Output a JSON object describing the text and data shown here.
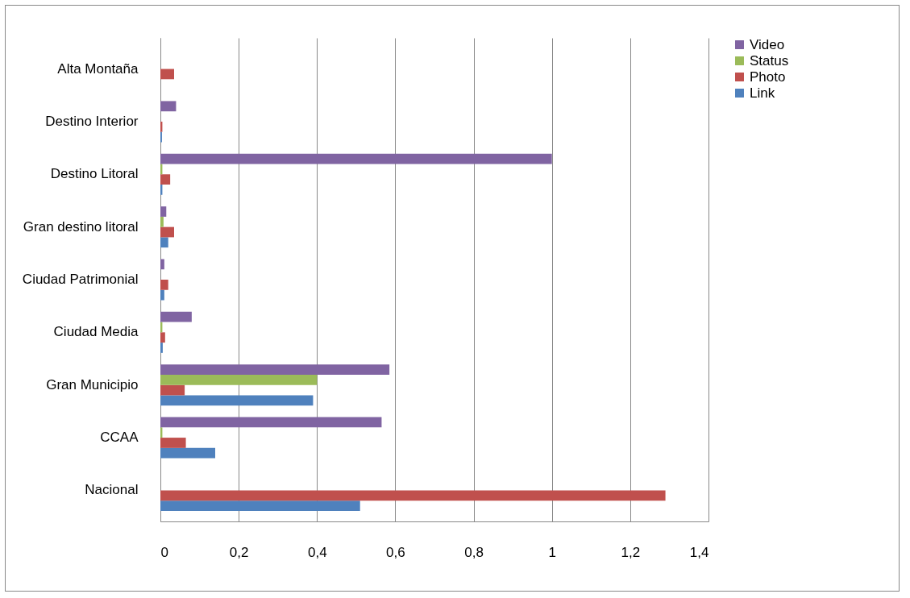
{
  "chart_data": {
    "type": "bar",
    "orientation": "horizontal",
    "categories": [
      "Alta Montaña",
      "Destino Interior",
      "Destino Litoral",
      "Gran destino litoral",
      "Ciudad Patrimonial",
      "Ciudad Media",
      "Gran Municipio",
      "CCAA",
      "Nacional"
    ],
    "series": [
      {
        "name": "Link",
        "color": "#4f81bd",
        "values": [
          null,
          0.004,
          0.005,
          0.02,
          0.01,
          0.006,
          0.39,
          0.14,
          0.51
        ]
      },
      {
        "name": "Photo",
        "color": "#c0504d",
        "values": [
          0.035,
          0.005,
          0.025,
          0.035,
          0.02,
          0.012,
          0.062,
          0.065,
          1.29
        ]
      },
      {
        "name": "Status",
        "color": "#9bbb59",
        "values": [
          null,
          null,
          0.005,
          0.008,
          null,
          0.005,
          0.4,
          0.005,
          null
        ]
      },
      {
        "name": "Video",
        "color": "#8064a2",
        "values": [
          null,
          0.04,
          1.0,
          0.015,
          0.01,
          0.08,
          0.585,
          0.565,
          null
        ]
      }
    ],
    "xlim": [
      0,
      1.4
    ],
    "xticks": [
      0,
      {
        "value": 0.2,
        "label": "0,2"
      },
      {
        "value": 0.4,
        "label": "0,4"
      },
      {
        "value": 0.6,
        "label": "0,6"
      },
      {
        "value": 0.8,
        "label": "0,8"
      },
      1,
      {
        "value": 1.2,
        "label": "1,2"
      },
      {
        "value": 1.4,
        "label": "1,4"
      }
    ],
    "grid": "x",
    "legend": "right"
  }
}
